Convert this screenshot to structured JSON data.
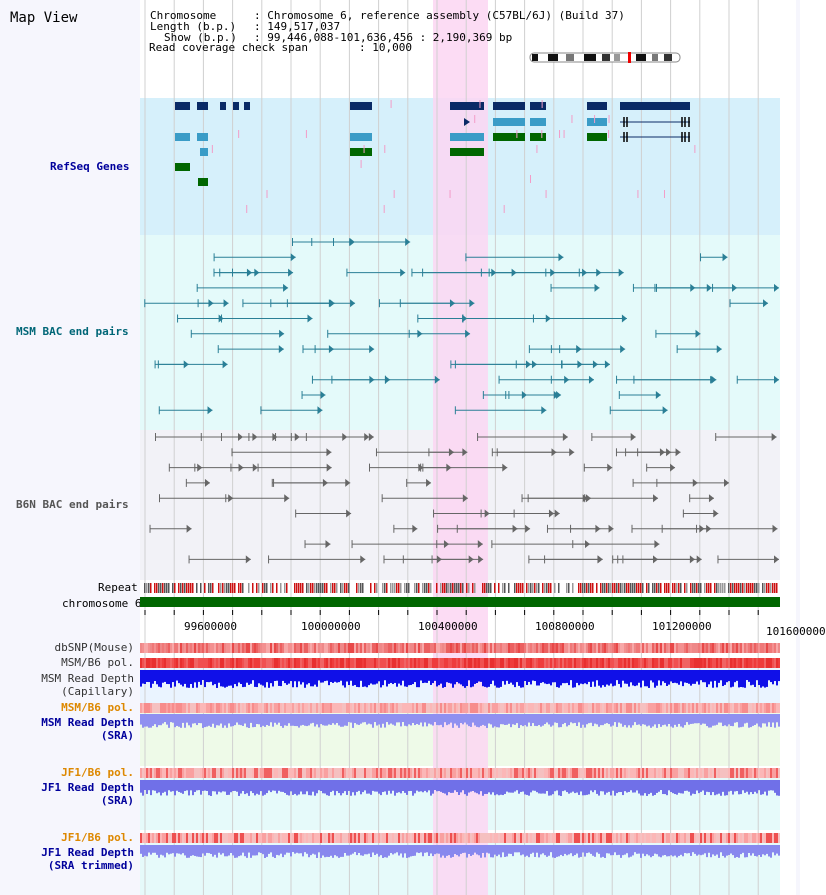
{
  "panel_title": "Map View",
  "info": {
    "chromosome_key": "Chromosome",
    "chromosome_val": ": Chromosome 6, reference assembly (C57BL/6J) (Build 37)",
    "length_key": "Length (b.p.)",
    "length_val": ": 149,517,037",
    "show_key": "Show (b.p.)",
    "show_val": ": 99,446,088-101,636,456 : 2,190,369 bp",
    "coverage_key": "Read coverage check span",
    "coverage_val": ": 10,000"
  },
  "tracks": {
    "refseq": "RefSeq Genes",
    "msm_bac": "MSM BAC end pairs",
    "b6n_bac": "B6N BAC end pairs",
    "repeat": "Repeat",
    "chromosome": "chromosome 6",
    "dbsnp": "dbSNP(Mouse)",
    "msm_b6_pol": "MSM/B6 pol.",
    "msm_depth_cap_1": "MSM Read Depth",
    "msm_depth_cap_2": "(Capillary)",
    "msm_b6_pol_2": "MSM/B6 pol.",
    "msm_depth_sra_1": "MSM Read Depth",
    "msm_depth_sra_2": "(SRA)",
    "jf1_pol": "JF1/B6 pol.",
    "jf1_depth_sra_1": "JF1 Read Depth",
    "jf1_depth_sra_2": "(SRA)",
    "jf1_pol_2": "JF1/B6 pol.",
    "jf1_depth_trim_1": "JF1 Read Depth",
    "jf1_depth_trim_2": "(SRA trimmed)"
  },
  "axis": {
    "ticks": [
      "99600000",
      "100000000",
      "100400000",
      "100800000",
      "101200000",
      "101600000"
    ]
  },
  "colors": {
    "highlight": "#fbd6f2",
    "refseq_bg": "#d6f0fb",
    "msm_bac_bg": "#e4fafa",
    "b6n_bac_bg": "#f2f2f7",
    "label_blue": "#00009c",
    "label_teal": "#006677",
    "label_orange": "#dd8800",
    "chromosome": "#006600"
  }
}
